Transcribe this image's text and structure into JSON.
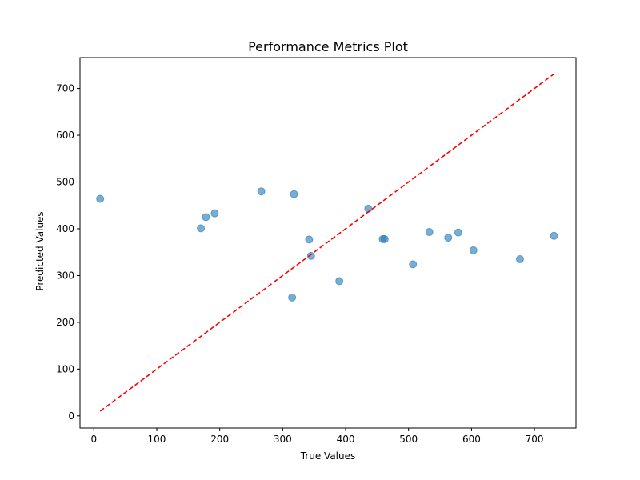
{
  "chart_data": {
    "type": "scatter",
    "title": "Performance Metrics Plot",
    "xlabel": "True Values",
    "ylabel": "Predicted Values",
    "xlim": [
      -22,
      766
    ],
    "ylim": [
      -26,
      766
    ],
    "xticks": [
      0,
      100,
      200,
      300,
      400,
      500,
      600,
      700
    ],
    "yticks": [
      0,
      100,
      200,
      300,
      400,
      500,
      600,
      700
    ],
    "grid": false,
    "point_color": "#1f77b4",
    "point_alpha": 0.6,
    "reference_line": {
      "from": [
        10,
        10
      ],
      "to": [
        731,
        731
      ],
      "color": "#ff0000",
      "style": "dashed"
    },
    "series": [
      {
        "points": [
          [
            10,
            464
          ],
          [
            170,
            401
          ],
          [
            178,
            425
          ],
          [
            192,
            433
          ],
          [
            266,
            480
          ],
          [
            315,
            253
          ],
          [
            318,
            474
          ],
          [
            342,
            377
          ],
          [
            345,
            342
          ],
          [
            390,
            288
          ],
          [
            436,
            443
          ],
          [
            459,
            378
          ],
          [
            462,
            378
          ],
          [
            507,
            324
          ],
          [
            533,
            393
          ],
          [
            563,
            381
          ],
          [
            579,
            392
          ],
          [
            603,
            354
          ],
          [
            677,
            335
          ],
          [
            731,
            385
          ]
        ]
      }
    ]
  }
}
